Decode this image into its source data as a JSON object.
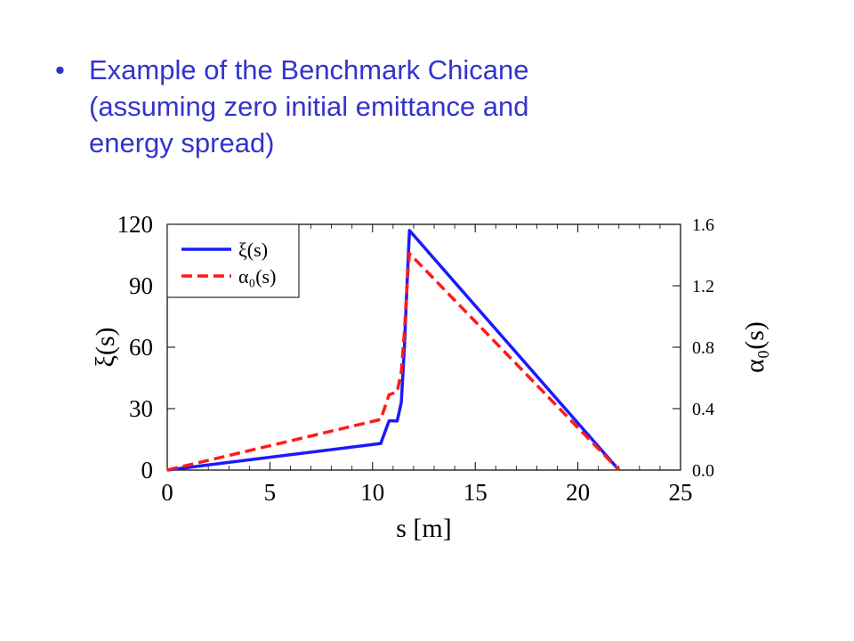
{
  "bullet": {
    "marker": "•",
    "lines": [
      "Example of the Benchmark Chicane",
      "(assuming zero initial emittance and",
      "energy spread)"
    ],
    "color": "#3333cc"
  },
  "chart_data": {
    "type": "line",
    "xlabel": "s [m]",
    "ylabel_left": "ξ(s)",
    "ylabel_right": "α₀(s)",
    "xlim": [
      0,
      25
    ],
    "ylim_left": [
      0,
      120
    ],
    "ylim_right": [
      0.0,
      1.6
    ],
    "x_ticks": [
      "0",
      "5",
      "10",
      "15",
      "20",
      "25"
    ],
    "y_ticks_left": [
      "0",
      "30",
      "60",
      "90",
      "120"
    ],
    "y_ticks_right": [
      "0.0",
      "0.4",
      "0.8",
      "1.2",
      "1.6"
    ],
    "grid": false,
    "legend_position": "top-left",
    "series": [
      {
        "name": "ξ(s)",
        "axis": "left",
        "color": "#1a1aff",
        "style": "solid",
        "x": [
          0,
          10.4,
          10.8,
          11.2,
          11.4,
          11.55,
          11.7,
          11.8,
          22.0
        ],
        "y": [
          0,
          13,
          24,
          24,
          33,
          60,
          95,
          117,
          0
        ]
      },
      {
        "name": "α₀(s)",
        "axis": "right",
        "color": "#ff1a1a",
        "style": "dashed",
        "x": [
          0,
          10.4,
          10.8,
          11.2,
          11.4,
          11.55,
          11.7,
          11.8,
          22.0
        ],
        "y": [
          0,
          0.33,
          0.49,
          0.51,
          0.64,
          0.9,
          1.25,
          1.41,
          0
        ]
      }
    ]
  }
}
